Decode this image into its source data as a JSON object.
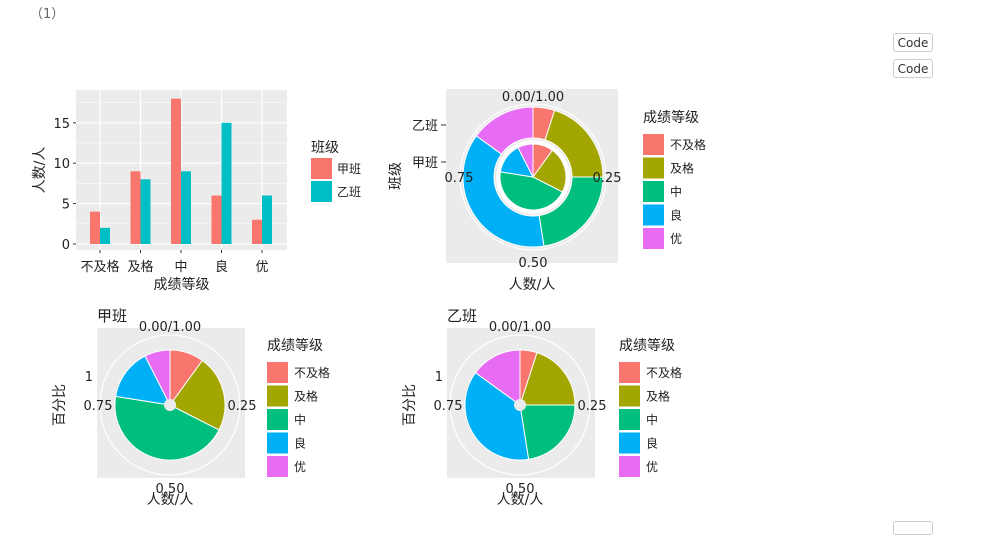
{
  "page": {
    "note": "（1）",
    "code_buttons": [
      "Code",
      "Code",
      ""
    ]
  },
  "colors": {
    "fail": "#F8766D",
    "pass": "#A3A500",
    "mid": "#00BF7D",
    "good": "#00B0F6",
    "excellent": "#E76BF3",
    "jia": "#F8766D",
    "yi": "#00BFC4",
    "panel": "#EBEBEB",
    "grid": "#FFFFFF"
  },
  "chart_data": [
    {
      "type": "bar",
      "categories": [
        "不及格",
        "及格",
        "中",
        "良",
        "优"
      ],
      "series": [
        {
          "name": "甲班",
          "values": [
            4,
            9,
            18,
            6,
            3
          ]
        },
        {
          "name": "乙班",
          "values": [
            2,
            8,
            9,
            15,
            6
          ]
        }
      ],
      "xlabel": "成绩等级",
      "ylabel": "人数/人",
      "ylim": [
        0,
        19
      ],
      "yticks": [
        "0",
        "5",
        "10",
        "15"
      ],
      "legend_title": "班级",
      "legend_placement": "right",
      "grid": true
    },
    {
      "type": "pie",
      "variant": "nested-donut",
      "categories": [
        "不及格",
        "及格",
        "中",
        "良",
        "优"
      ],
      "rings": [
        {
          "name": "甲班",
          "values": [
            4,
            9,
            18,
            6,
            3
          ]
        },
        {
          "name": "乙班",
          "values": [
            2,
            8,
            9,
            15,
            6
          ]
        }
      ],
      "ring_labels": [
        "甲班",
        "乙班"
      ],
      "ylabel": "班级",
      "xlabel": "人数/人",
      "radial_labels": [
        "0.00/1.00",
        "0.25",
        "0.50",
        "0.75"
      ],
      "legend_title": "成绩等级",
      "legend_placement": "right"
    },
    {
      "type": "pie",
      "title": "甲班",
      "categories": [
        "不及格",
        "及格",
        "中",
        "良",
        "优"
      ],
      "values": [
        4,
        9,
        18,
        6,
        3
      ],
      "ylabel": "百分比",
      "ytick": "1",
      "xlabel": "人数/人",
      "radial_labels": [
        "0.00/1.00",
        "0.25",
        "0.50",
        "0.75"
      ],
      "legend_title": "成绩等级",
      "legend_placement": "right"
    },
    {
      "type": "pie",
      "title": "乙班",
      "categories": [
        "不及格",
        "及格",
        "中",
        "良",
        "优"
      ],
      "values": [
        2,
        8,
        9,
        15,
        6
      ],
      "ylabel": "百分比",
      "ytick": "1",
      "xlabel": "人数/人",
      "radial_labels": [
        "0.00/1.00",
        "0.25",
        "0.50",
        "0.75"
      ],
      "legend_title": "成绩等级",
      "legend_placement": "right"
    }
  ]
}
